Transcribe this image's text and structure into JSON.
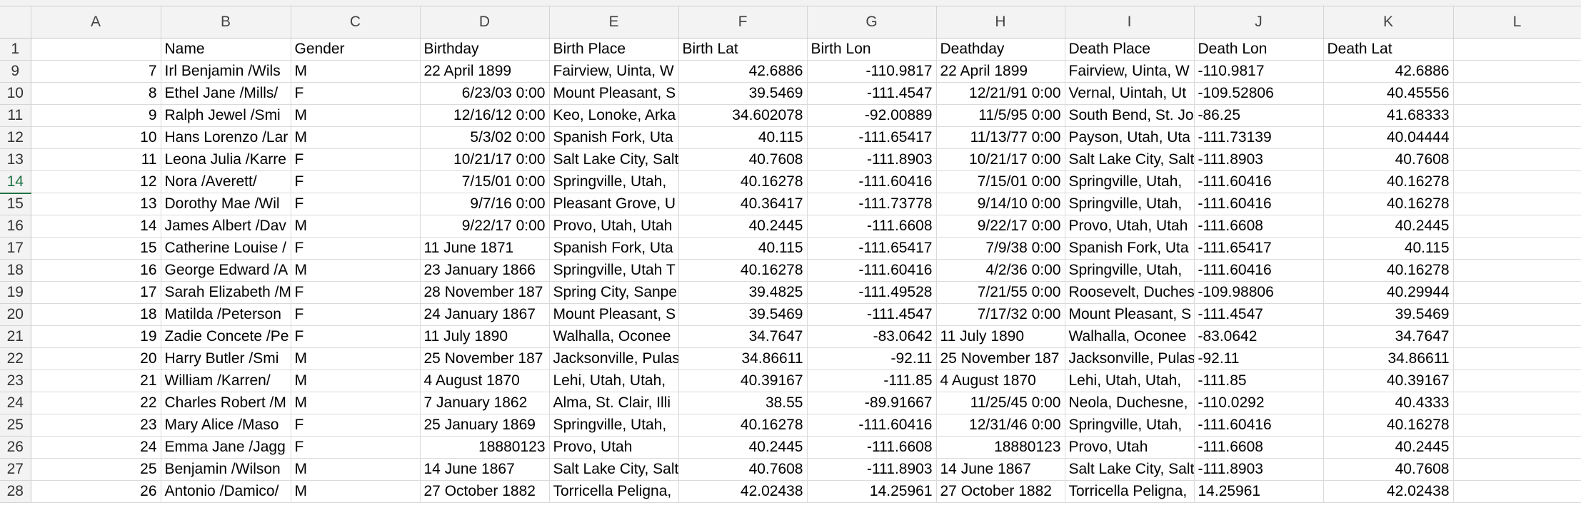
{
  "columns": [
    "A",
    "B",
    "C",
    "D",
    "E",
    "F",
    "G",
    "H",
    "I",
    "J",
    "K",
    "L"
  ],
  "numeric_columns": [
    0,
    5,
    6,
    10
  ],
  "rows": [
    {
      "num": "1",
      "cells": [
        "",
        "Name",
        "Gender",
        "Birthday",
        "Birth Place",
        "Birth Lat",
        "Birth Lon",
        "Deathday",
        "Death Place",
        "Death Lon",
        "Death Lat",
        ""
      ],
      "header": true
    },
    {
      "num": "9",
      "cells": [
        "7",
        "Irl Benjamin /Wils",
        "M",
        "22 April 1899",
        "Fairview, Uinta, W",
        "42.6886",
        "-110.9817",
        "22 April 1899",
        "Fairview, Uinta, W",
        "-110.9817",
        "42.6886",
        ""
      ]
    },
    {
      "num": "10",
      "cells": [
        "8",
        "Ethel Jane /Mills/",
        "F",
        "6/23/03 0:00",
        "Mount Pleasant, S",
        "39.5469",
        "-111.4547",
        "12/21/91 0:00",
        "Vernal, Uintah, Ut",
        "-109.52806",
        "40.45556",
        ""
      ]
    },
    {
      "num": "11",
      "cells": [
        "9",
        "Ralph Jewel /Smi",
        "M",
        "12/16/12 0:00",
        "Keo, Lonoke, Arka",
        "34.602078",
        "-92.00889",
        "11/5/95 0:00",
        "South Bend, St. Jo",
        "-86.25",
        "41.68333",
        ""
      ]
    },
    {
      "num": "12",
      "cells": [
        "10",
        "Hans Lorenzo /Lar",
        "M",
        "5/3/02 0:00",
        "Spanish Fork, Uta",
        "40.115",
        "-111.65417",
        "11/13/77 0:00",
        "Payson, Utah, Uta",
        "-111.73139",
        "40.04444",
        ""
      ]
    },
    {
      "num": "13",
      "cells": [
        "11",
        "Leona Julia /Karre",
        "F",
        "10/21/17 0:00",
        "Salt Lake City, Salt",
        "40.7608",
        "-111.8903",
        "10/21/17 0:00",
        "Salt Lake City, Salt",
        "-111.8903",
        "40.7608",
        ""
      ]
    },
    {
      "num": "14",
      "cells": [
        "12",
        "Nora /Averett/",
        "F",
        "7/15/01 0:00",
        "Springville, Utah,",
        "40.16278",
        "-111.60416",
        "7/15/01 0:00",
        "Springville, Utah,",
        "-111.60416",
        "40.16278",
        ""
      ],
      "active": true
    },
    {
      "num": "15",
      "cells": [
        "13",
        "Dorothy Mae /Wil",
        "F",
        "9/7/16 0:00",
        "Pleasant Grove, U",
        "40.36417",
        "-111.73778",
        "9/14/10 0:00",
        "Springville, Utah,",
        "-111.60416",
        "40.16278",
        ""
      ]
    },
    {
      "num": "16",
      "cells": [
        "14",
        "James Albert /Dav",
        "M",
        "9/22/17 0:00",
        "Provo, Utah, Utah",
        "40.2445",
        "-111.6608",
        "9/22/17 0:00",
        "Provo, Utah, Utah",
        "-111.6608",
        "40.2445",
        ""
      ]
    },
    {
      "num": "17",
      "cells": [
        "15",
        "Catherine Louise /",
        "F",
        "11 June 1871",
        "Spanish Fork, Uta",
        "40.115",
        "-111.65417",
        "7/9/38 0:00",
        "Spanish Fork, Uta",
        "-111.65417",
        "40.115",
        ""
      ]
    },
    {
      "num": "18",
      "cells": [
        "16",
        "George Edward /A",
        "M",
        "23 January 1866",
        "Springville, Utah T",
        "40.16278",
        "-111.60416",
        "4/2/36 0:00",
        "Springville, Utah,",
        "-111.60416",
        "40.16278",
        ""
      ]
    },
    {
      "num": "19",
      "cells": [
        "17",
        "Sarah Elizabeth /M",
        "F",
        "28 November 187",
        "Spring City, Sanpe",
        "39.4825",
        "-111.49528",
        "7/21/55 0:00",
        "Roosevelt, Duches",
        "-109.98806",
        "40.29944",
        ""
      ]
    },
    {
      "num": "20",
      "cells": [
        "18",
        "Matilda /Peterson",
        "F",
        "24 January 1867",
        "Mount Pleasant, S",
        "39.5469",
        "-111.4547",
        "7/17/32 0:00",
        "Mount Pleasant, S",
        "-111.4547",
        "39.5469",
        ""
      ]
    },
    {
      "num": "21",
      "cells": [
        "19",
        "Zadie Concete /Pe",
        "F",
        "11 July 1890",
        "Walhalla, Oconee",
        "34.7647",
        "-83.0642",
        "11 July 1890",
        "Walhalla, Oconee",
        "-83.0642",
        "34.7647",
        ""
      ]
    },
    {
      "num": "22",
      "cells": [
        "20",
        "Harry Butler /Smi",
        "M",
        "25 November 187",
        "Jacksonville, Pulas",
        "34.86611",
        "-92.11",
        "25 November 187",
        "Jacksonville, Pulas",
        "-92.11",
        "34.86611",
        ""
      ]
    },
    {
      "num": "23",
      "cells": [
        "21",
        "William /Karren/",
        "M",
        "4 August 1870",
        "Lehi, Utah, Utah,",
        "40.39167",
        "-111.85",
        "4 August 1870",
        "Lehi, Utah, Utah,",
        "-111.85",
        "40.39167",
        ""
      ]
    },
    {
      "num": "24",
      "cells": [
        "22",
        "Charles Robert /M",
        "M",
        "7 January 1862",
        "Alma, St. Clair, Illi",
        "38.55",
        "-89.91667",
        "11/25/45 0:00",
        "Neola, Duchesne,",
        "-110.0292",
        "40.4333",
        ""
      ]
    },
    {
      "num": "25",
      "cells": [
        "23",
        "Mary Alice /Maso",
        "F",
        "25 January 1869",
        "Springville, Utah,",
        "40.16278",
        "-111.60416",
        "12/31/46 0:00",
        "Springville, Utah,",
        "-111.60416",
        "40.16278",
        ""
      ]
    },
    {
      "num": "26",
      "cells": [
        "24",
        "Emma Jane /Jagg",
        "F",
        "18880123",
        "Provo, Utah",
        "40.2445",
        "-111.6608",
        "18880123",
        "Provo, Utah",
        "-111.6608",
        "40.2445",
        ""
      ]
    },
    {
      "num": "27",
      "cells": [
        "25",
        "Benjamin /Wilson",
        "M",
        "14 June 1867",
        "Salt Lake City, Salt",
        "40.7608",
        "-111.8903",
        "14 June 1867",
        "Salt Lake City, Salt",
        "-111.8903",
        "40.7608",
        ""
      ]
    },
    {
      "num": "28",
      "cells": [
        "26",
        "Antonio /Damico/",
        "M",
        "27 October 1882",
        "Torricella Peligna,",
        "42.02438",
        "14.25961",
        "27 October 1882",
        "Torricella Peligna,",
        "14.25961",
        "42.02438",
        ""
      ]
    }
  ],
  "right_aligned_text_cells": {
    "3": [
      "6/23/03 0:00",
      "12/16/12 0:00",
      "5/3/02 0:00",
      "10/21/17 0:00",
      "7/15/01 0:00",
      "9/7/16 0:00",
      "9/22/17 0:00",
      "18880123"
    ],
    "7": [
      "12/21/91 0:00",
      "11/5/95 0:00",
      "11/13/77 0:00",
      "10/21/17 0:00",
      "7/15/01 0:00",
      "9/14/10 0:00",
      "9/22/17 0:00",
      "7/9/38 0:00",
      "4/2/36 0:00",
      "7/21/55 0:00",
      "7/17/32 0:00",
      "11/25/45 0:00",
      "12/31/46 0:00",
      "18880123"
    ]
  }
}
